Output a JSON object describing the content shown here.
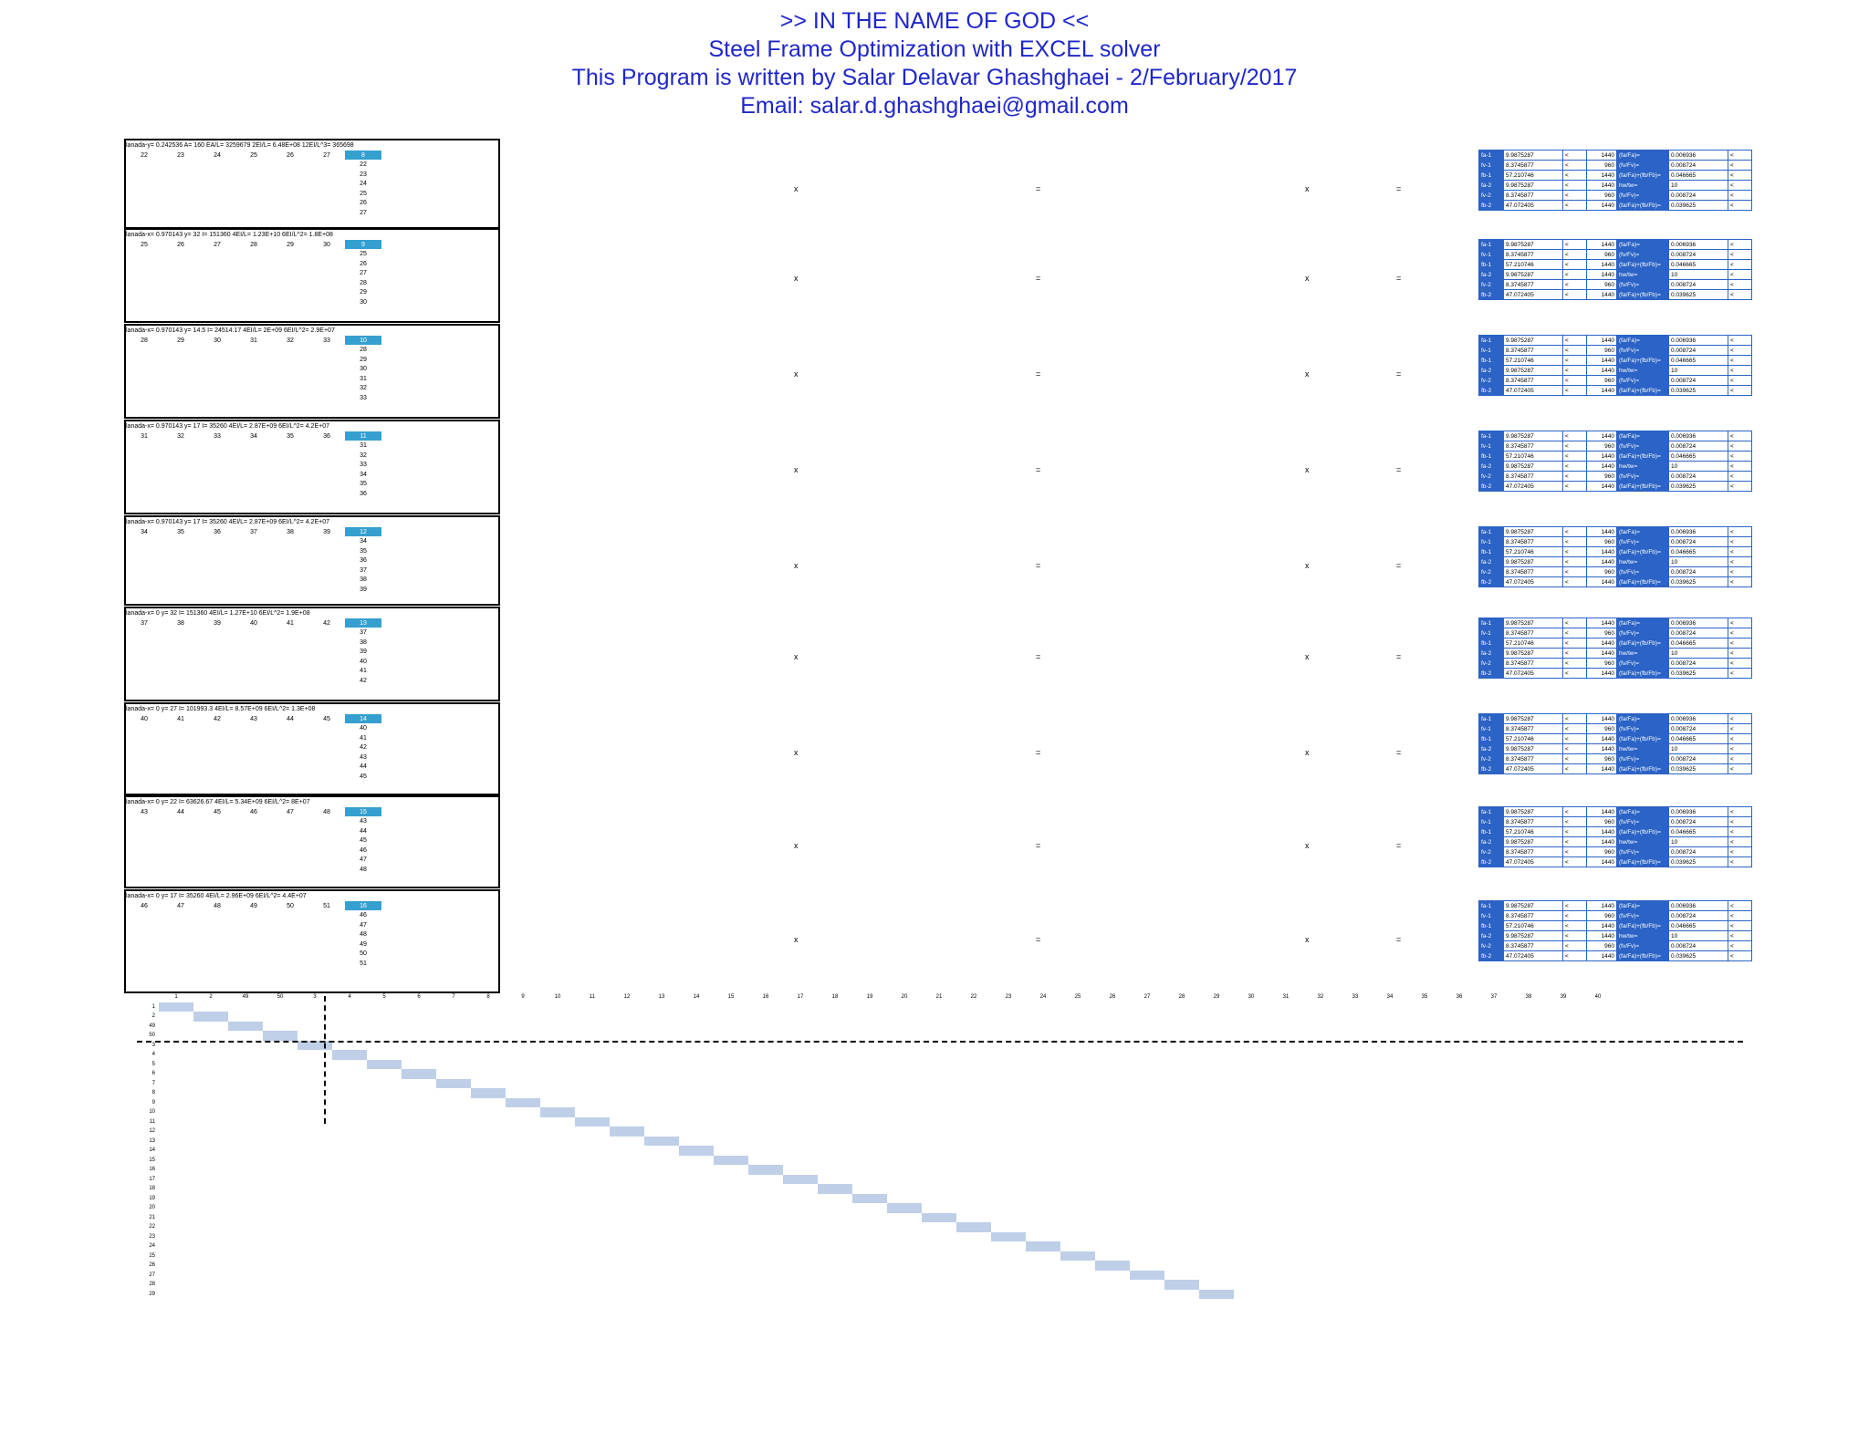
{
  "header": {
    "line1": ">> IN THE NAME OF GOD <<",
    "line2": "Steel Frame Optimization with EXCEL solver",
    "line3": "This Program is written by Salar Delavar Ghashghaei - 2/February/2017",
    "line4": "Email: salar.d.ghashghaei@gmail.com"
  },
  "elements": [
    {
      "no": "8",
      "l1": "lanada-y= 0.242536  A=  160  EA/L=  3259679  2EI/L=  6.48E+08  12EI/L^3=  365698",
      "dof": [
        "22",
        "23",
        "24",
        "25",
        "26",
        "27"
      ]
    },
    {
      "no": "9",
      "l1": "lanada-x= 0.970143  y=  32  I=  151360  4EI/L=  1.23E+10  6EI/L^2=  1.8E+08",
      "dof": [
        "25",
        "26",
        "27",
        "28",
        "29",
        "30"
      ]
    },
    {
      "no": "10",
      "l1": "lanada-x= 0.970143  y=  14.5  I=  24514.17  4EI/L=  2E+09  6EI/L^2=  2.9E+07",
      "dof": [
        "28",
        "29",
        "30",
        "31",
        "32",
        "33"
      ]
    },
    {
      "no": "11",
      "l1": "lanada-x= 0.970143  y=  17  I=  35260  4EI/L=  2.87E+09  6EI/L^2=  4.2E+07",
      "dof": [
        "31",
        "32",
        "33",
        "34",
        "35",
        "36"
      ]
    },
    {
      "no": "12",
      "l1": "lanada-x= 0.970143  y=  17  I=  35260  4EI/L=  2.87E+09  6EI/L^2=  4.2E+07",
      "dof": [
        "34",
        "35",
        "36",
        "37",
        "38",
        "39"
      ]
    },
    {
      "no": "13",
      "l1": "lanada-x= 0  y=  32  I=  151360  4EI/L=  1.27E+10  6EI/L^2=  1.9E+08",
      "dof": [
        "37",
        "38",
        "39",
        "40",
        "41",
        "42"
      ]
    },
    {
      "no": "14",
      "l1": "lanada-x= 0  y=  27  I=  101993.3  4EI/L=  8.57E+09  6EI/L^2=  1.3E+08",
      "dof": [
        "40",
        "41",
        "42",
        "43",
        "44",
        "45"
      ]
    },
    {
      "no": "15",
      "l1": "lanada-x= 0  y=  22  I=  63626.67  4EI/L=  5.34E+09  6EI/L^2=  8E+07",
      "dof": [
        "43",
        "44",
        "45",
        "46",
        "47",
        "48"
      ]
    },
    {
      "no": "16",
      "l1": "lanada-x= 0  y=  17  I=  35260  4EI/L=  2.96E+09  6EI/L^2=  4.4E+07",
      "dof": [
        "46",
        "47",
        "48",
        "49",
        "50",
        "51"
      ]
    }
  ],
  "checks": [
    [
      "9.9875287",
      "1440",
      "(fa/Fa)=",
      "0.006936"
    ],
    [
      "8.3745877",
      "960",
      "(fv/Fv)=",
      "0.008724"
    ],
    [
      "57.210746",
      "1440",
      "(fa/Fa)+(fb/Fb)=",
      "0.046665"
    ],
    [
      "9.9875287",
      "1440",
      "hw/tw=",
      "10"
    ],
    [
      "8.3745877",
      "960",
      "(fv/Fv)=",
      "0.008724"
    ],
    [
      "47.072405",
      "1440",
      "(fa/Fa)+(fb/Fb)=",
      "0.039625"
    ]
  ],
  "global_cols": [
    "1",
    "2",
    "49",
    "50",
    "3",
    "4",
    "5",
    "6",
    "7",
    "8",
    "9",
    "10",
    "11",
    "12",
    "13",
    "14",
    "15",
    "16",
    "17",
    "18",
    "19",
    "20",
    "21",
    "22",
    "23",
    "24",
    "25",
    "26",
    "27",
    "28",
    "29",
    "30",
    "31",
    "32",
    "33",
    "34",
    "35",
    "36",
    "37",
    "38",
    "39",
    "40"
  ],
  "global_rows": [
    "1",
    "2",
    "49",
    "50",
    "3",
    "4",
    "5",
    "6",
    "7",
    "8",
    "9",
    "10",
    "11",
    "12",
    "13",
    "14",
    "15",
    "16",
    "17",
    "18",
    "19",
    "20",
    "21",
    "22",
    "23",
    "24",
    "25",
    "26",
    "27",
    "28",
    "29"
  ]
}
